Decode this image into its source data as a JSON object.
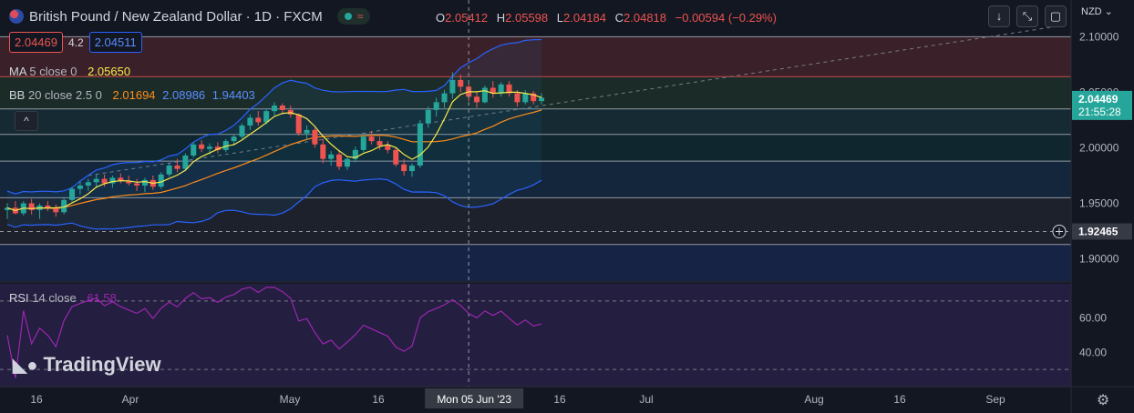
{
  "header": {
    "title": "British Pound / New Zealand Dollar · 1D · FXCM",
    "ohlc": [
      {
        "k": "O",
        "v": "2.05412"
      },
      {
        "k": "H",
        "v": "2.05598"
      },
      {
        "k": "L",
        "v": "2.04184"
      },
      {
        "k": "C",
        "v": "2.04818"
      }
    ],
    "change": "−0.00594 (−0.29%)"
  },
  "quote": {
    "sell": "2.04469",
    "spread": "4.2",
    "buy": "2.04511"
  },
  "indicators": {
    "ma": {
      "label": "MA",
      "params": "5 close 0",
      "value": "2.05650"
    },
    "bb": {
      "label": "BB",
      "params": "20 close 2.5 0",
      "basis": "2.01694",
      "upper": "2.08986",
      "lower": "1.94403"
    },
    "rsi": {
      "label": "RSI",
      "params": "14 close",
      "value": "61.58"
    }
  },
  "toolbar": {
    "currency": "NZD",
    "down_icon": "↓",
    "fullscreen_icon": "⤡",
    "screenshot_icon": "▢",
    "collapse_icon": "^"
  },
  "logo": {
    "text": "TradingView"
  },
  "settings_icon": "⚙",
  "colors": {
    "bull": "#26a69a",
    "bear": "#ef5350",
    "ma": "#f7e94a",
    "bb_basis": "#ff8c1a",
    "bb_band": "#2962ff",
    "rsi": "#9c27b0"
  },
  "chart_data": {
    "type": "candlestick",
    "title": "British Pound / New Zealand Dollar · 1D · FXCM",
    "y_axis": {
      "ticks": [
        1.9,
        1.95,
        2.0,
        2.05,
        2.1
      ],
      "tick_labels": [
        "1.90000",
        "1.95000",
        "2.00000",
        "2.05000",
        "2.10000"
      ],
      "range": [
        1.88,
        2.115
      ],
      "side": "right"
    },
    "x_axis": {
      "tick_labels": [
        "16",
        "Apr",
        "May",
        "16",
        "Mon 05 Jun '23",
        "16",
        "Jul",
        "Aug",
        "16",
        "Sep"
      ],
      "highlighted": "Mon 05 Jun '23"
    },
    "last_price": {
      "value": 2.04469,
      "label": "2.04469",
      "countdown": "21:55:28"
    },
    "crosshair": {
      "price": 1.92465,
      "label": "1.92465",
      "date": "Mon 05 Jun '23"
    },
    "horizontal_levels": [
      2.1,
      2.064,
      2.035,
      2.012,
      1.988,
      1.955,
      1.913
    ],
    "candles": [
      [
        1.944,
        1.95,
        1.936,
        1.946
      ],
      [
        1.946,
        1.952,
        1.94,
        1.941
      ],
      [
        1.941,
        1.952,
        1.939,
        1.95
      ],
      [
        1.95,
        1.954,
        1.94,
        1.944
      ],
      [
        1.944,
        1.95,
        1.936,
        1.948
      ],
      [
        1.948,
        1.952,
        1.943,
        1.946
      ],
      [
        1.946,
        1.949,
        1.938,
        1.942
      ],
      [
        1.942,
        1.955,
        1.94,
        1.953
      ],
      [
        1.953,
        1.965,
        1.951,
        1.963
      ],
      [
        1.963,
        1.97,
        1.958,
        1.966
      ],
      [
        1.966,
        1.972,
        1.961,
        1.969
      ],
      [
        1.969,
        1.976,
        1.964,
        1.972
      ],
      [
        1.972,
        1.976,
        1.965,
        1.968
      ],
      [
        1.968,
        1.975,
        1.964,
        1.973
      ],
      [
        1.973,
        1.977,
        1.968,
        1.97
      ],
      [
        1.97,
        1.975,
        1.966,
        1.968
      ],
      [
        1.968,
        1.972,
        1.961,
        1.966
      ],
      [
        1.966,
        1.973,
        1.96,
        1.971
      ],
      [
        1.971,
        1.975,
        1.962,
        1.965
      ],
      [
        1.965,
        1.978,
        1.963,
        1.976
      ],
      [
        1.976,
        1.986,
        1.974,
        1.984
      ],
      [
        1.984,
        1.99,
        1.978,
        1.981
      ],
      [
        1.981,
        1.995,
        1.979,
        1.993
      ],
      [
        1.993,
        2.005,
        1.991,
        2.003
      ],
      [
        2.003,
        2.007,
        1.996,
        1.999
      ],
      [
        1.999,
        2.004,
        1.994,
        2.001
      ],
      [
        2.001,
        2.005,
        1.995,
        1.998
      ],
      [
        1.998,
        2.008,
        1.996,
        2.006
      ],
      [
        2.006,
        2.012,
        2.003,
        2.01
      ],
      [
        2.01,
        2.022,
        2.008,
        2.02
      ],
      [
        2.02,
        2.03,
        2.016,
        2.027
      ],
      [
        2.027,
        2.033,
        2.02,
        2.023
      ],
      [
        2.023,
        2.035,
        2.021,
        2.033
      ],
      [
        2.033,
        2.041,
        2.029,
        2.038
      ],
      [
        2.038,
        2.04,
        2.03,
        2.034
      ],
      [
        2.034,
        2.038,
        2.027,
        2.03
      ],
      [
        2.03,
        2.031,
        2.011,
        2.013
      ],
      [
        2.013,
        2.02,
        2.008,
        2.016
      ],
      [
        2.016,
        2.018,
        2.0,
        2.003
      ],
      [
        2.003,
        2.008,
        1.986,
        1.99
      ],
      [
        1.99,
        1.997,
        1.984,
        1.994
      ],
      [
        1.994,
        1.998,
        1.98,
        1.983
      ],
      [
        1.983,
        1.992,
        1.98,
        1.99
      ],
      [
        1.99,
        2.001,
        1.987,
        1.998
      ],
      [
        1.998,
        2.012,
        1.996,
        2.01
      ],
      [
        2.01,
        2.015,
        2.003,
        2.006
      ],
      [
        2.006,
        2.01,
        1.998,
        2.002
      ],
      [
        2.002,
        2.006,
        1.995,
        1.998
      ],
      [
        1.998,
        2.0,
        1.983,
        1.985
      ],
      [
        1.985,
        1.99,
        1.975,
        1.979
      ],
      [
        1.979,
        1.986,
        1.974,
        1.984
      ],
      [
        1.984,
        2.025,
        1.982,
        2.022
      ],
      [
        2.022,
        2.037,
        2.018,
        2.034
      ],
      [
        2.034,
        2.045,
        2.028,
        2.041
      ],
      [
        2.041,
        2.052,
        2.036,
        2.049
      ],
      [
        2.049,
        2.068,
        2.044,
        2.061
      ],
      [
        2.061,
        2.066,
        2.05,
        2.055
      ],
      [
        2.055,
        2.058,
        2.042,
        2.046
      ],
      [
        2.046,
        2.05,
        2.036,
        2.041
      ],
      [
        2.041,
        2.056,
        2.04,
        2.054
      ],
      [
        2.054,
        2.06,
        2.045,
        2.049
      ],
      [
        2.049,
        2.059,
        2.046,
        2.057
      ],
      [
        2.057,
        2.06,
        2.046,
        2.049
      ],
      [
        2.049,
        2.052,
        2.037,
        2.041
      ],
      [
        2.041,
        2.052,
        2.039,
        2.049
      ],
      [
        2.049,
        2.051,
        2.039,
        2.042
      ],
      [
        2.042,
        2.049,
        2.039,
        2.045
      ]
    ],
    "rsi_levels": {
      "upper": 70,
      "lower": 30,
      "ticks": [
        "60.00",
        "40.00"
      ]
    }
  }
}
